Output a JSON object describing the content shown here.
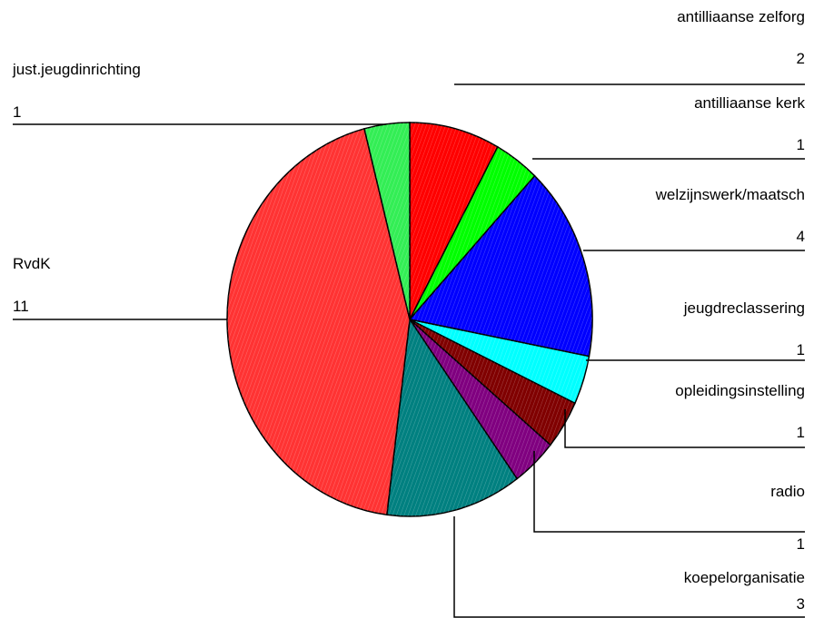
{
  "chart_data": {
    "type": "pie",
    "title": "",
    "legend": "none",
    "slices": [
      {
        "label": "antilliaanse zelforg",
        "value": 2,
        "color": "#ff0000"
      },
      {
        "label": "antilliaanse kerk",
        "value": 1,
        "color": "#00ff00"
      },
      {
        "label": "welzijnswerk/maatsch",
        "value": 4,
        "color": "#0000ff"
      },
      {
        "label": "jeugdreclassering",
        "value": 1,
        "color": "#00ffff"
      },
      {
        "label": "opleidingsinstelling",
        "value": 1,
        "color": "#800000"
      },
      {
        "label": "radio",
        "value": 1,
        "color": "#800080"
      },
      {
        "label": "koepelorganisatie",
        "value": 3,
        "color": "#008080"
      },
      {
        "label": "RvdK",
        "value": 11,
        "color": "#ff3333"
      },
      {
        "label": "just.jeugdinrichting",
        "value": 1,
        "color": "#33ee55"
      }
    ]
  }
}
